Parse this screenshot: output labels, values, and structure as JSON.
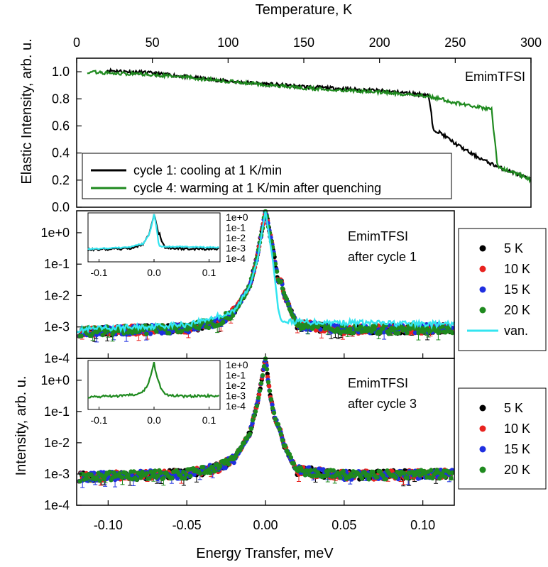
{
  "figure": {
    "top_axis_label": "Temperature, K",
    "top_ylabel": "Elastic Intensity, arb. u.",
    "bottom_ylabel": "Intensity, arb. u.",
    "bottom_xlabel": "Energy Transfer, meV"
  },
  "chart_data": [
    {
      "type": "line",
      "xlabel": "Temperature, K",
      "ylabel": "Elastic Intensity, arb. u.",
      "xlim": [
        0,
        300
      ],
      "ylim": [
        0,
        1.1
      ],
      "x_ticks": [
        "0",
        "50",
        "100",
        "150",
        "200",
        "250",
        "300"
      ],
      "y_ticks": [
        "0.0",
        "0.2",
        "0.4",
        "0.6",
        "0.8",
        "1.0"
      ],
      "annotation": "EmimTFSI",
      "legend_position": "bottom-left",
      "series": [
        {
          "name": "cycle 1: cooling at 1 K/min",
          "color": "#000000",
          "x": [
            20,
            50,
            100,
            150,
            200,
            232,
            234,
            235,
            240,
            250,
            260,
            270,
            280,
            290,
            300
          ],
          "y": [
            1.01,
            0.99,
            0.93,
            0.89,
            0.86,
            0.83,
            0.72,
            0.58,
            0.55,
            0.47,
            0.4,
            0.34,
            0.29,
            0.25,
            0.2
          ]
        },
        {
          "name": "cycle 4: warming at 1 K/min after quenching",
          "color": "#1f8a1f",
          "x": [
            7,
            20,
            50,
            100,
            150,
            200,
            232,
            240,
            250,
            260,
            270,
            274,
            276,
            278,
            285,
            290,
            300
          ],
          "y": [
            1.0,
            0.99,
            0.98,
            0.93,
            0.88,
            0.85,
            0.82,
            0.8,
            0.77,
            0.75,
            0.73,
            0.72,
            0.5,
            0.3,
            0.27,
            0.25,
            0.2
          ]
        }
      ]
    },
    {
      "type": "scatter",
      "xlabel": "Energy Transfer, meV",
      "ylabel": "Intensity, arb. u.",
      "xlim": [
        -0.12,
        0.12
      ],
      "ylim": [
        0.0001,
        5
      ],
      "y_scale": "log",
      "x_ticks": [
        "-0.10",
        "-0.05",
        "0.00",
        "0.05",
        "0.10"
      ],
      "y_ticks": [
        "1e-4",
        "1e-3",
        "1e-2",
        "1e-1",
        "1e+0"
      ],
      "annotation": [
        "EmimTFSI",
        "after cycle 1"
      ],
      "legend_position": "right, outside",
      "series": [
        {
          "name": "5 K",
          "color": "#000000"
        },
        {
          "name": "10 K",
          "color": "#e8231f"
        },
        {
          "name": "15 K",
          "color": "#1f2fe0"
        },
        {
          "name": "20 K",
          "color": "#1f8a1f"
        },
        {
          "name": "van.",
          "color": "#33e5f0"
        }
      ],
      "profile": {
        "x": [
          -0.12,
          -0.05,
          -0.03,
          -0.02,
          -0.01,
          -0.005,
          0.0,
          0.005,
          0.008,
          0.01,
          0.012,
          0.02,
          0.05,
          0.12
        ],
        "y": [
          0.0007,
          0.0009,
          0.0015,
          0.003,
          0.02,
          0.2,
          5,
          0.25,
          0.03,
          0.03,
          0.01,
          0.0012,
          0.0008,
          0.0009
        ]
      },
      "vanadium_profile": {
        "x": [
          -0.12,
          -0.05,
          -0.02,
          -0.01,
          -0.005,
          0.0,
          0.005,
          0.008,
          0.01,
          0.12
        ],
        "y": [
          0.0008,
          0.0012,
          0.003,
          0.02,
          0.15,
          5,
          0.1,
          0.004,
          0.0015,
          0.0012
        ]
      },
      "inset": {
        "x_ticks": [
          "-0.1",
          "0.0",
          "0.1"
        ],
        "y_ticks": [
          "1e+0",
          "1e-1",
          "1e-2",
          "1e-3",
          "1e-4"
        ]
      }
    },
    {
      "type": "scatter",
      "xlabel": "Energy Transfer, meV",
      "ylabel": "Intensity, arb. u.",
      "xlim": [
        -0.12,
        0.12
      ],
      "ylim": [
        0.0001,
        5
      ],
      "y_scale": "log",
      "x_ticks": [
        "-0.10",
        "-0.05",
        "0.00",
        "0.05",
        "0.10"
      ],
      "y_ticks": [
        "1e-4",
        "1e-3",
        "1e-2",
        "1e-1",
        "1e+0"
      ],
      "annotation": [
        "EmimTFSI",
        "after cycle 3"
      ],
      "legend_position": "right, outside",
      "series": [
        {
          "name": "5 K",
          "color": "#000000"
        },
        {
          "name": "10 K",
          "color": "#e8231f"
        },
        {
          "name": "15 K",
          "color": "#1f2fe0"
        },
        {
          "name": "20 K",
          "color": "#1f8a1f"
        }
      ],
      "profile": {
        "x": [
          -0.12,
          -0.05,
          -0.03,
          -0.02,
          -0.01,
          -0.005,
          0.0,
          0.003,
          0.006,
          0.009,
          0.012,
          0.02,
          0.05,
          0.12
        ],
        "y": [
          0.0008,
          0.001,
          0.0016,
          0.003,
          0.02,
          0.2,
          5,
          0.3,
          0.06,
          0.03,
          0.008,
          0.0013,
          0.0009,
          0.001
        ]
      },
      "inset": {
        "x_ticks": [
          "-0.1",
          "0.0",
          "0.1"
        ],
        "y_ticks": [
          "1e+0",
          "1e-1",
          "1e-2",
          "1e-3",
          "1e-4"
        ]
      }
    }
  ]
}
